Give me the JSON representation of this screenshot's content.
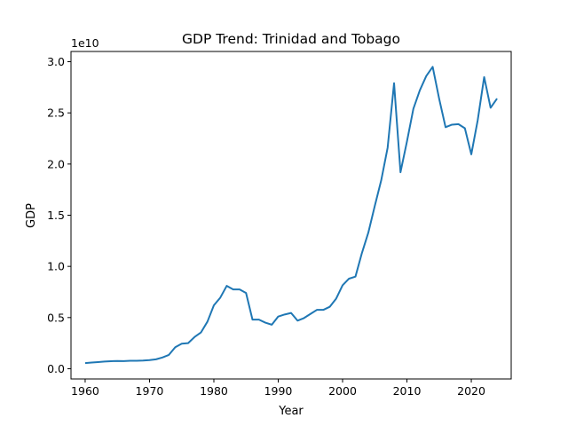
{
  "chart_data": {
    "type": "line",
    "title": "GDP Trend: Trinidad and Tobago",
    "xlabel": "Year",
    "ylabel": "GDP",
    "offset_label": "1e10",
    "xlim": [
      1957.8,
      2026.2
    ],
    "ylim": [
      -1000000000.0,
      31000000000.0
    ],
    "x_ticks": [
      1960,
      1970,
      1980,
      1990,
      2000,
      2010,
      2020
    ],
    "y_ticks": [
      0,
      5000000000.0,
      10000000000.0,
      15000000000.0,
      20000000000.0,
      25000000000.0,
      30000000000.0
    ],
    "y_tick_labels": [
      "0.0",
      "0.5",
      "1.0",
      "1.5",
      "2.0",
      "2.5",
      "3.0"
    ],
    "grid": false,
    "color": "#1f77b4",
    "series": [
      {
        "x": [
          1960,
          1961,
          1962,
          1963,
          1964,
          1965,
          1966,
          1967,
          1968,
          1969,
          1970,
          1971,
          1972,
          1973,
          1974,
          1975,
          1976,
          1977,
          1978,
          1979,
          1980,
          1981,
          1982,
          1983,
          1984,
          1985,
          1986,
          1987,
          1988,
          1989,
          1990,
          1991,
          1992,
          1993,
          1994,
          1995,
          1996,
          1997,
          1998,
          1999,
          2000,
          2001,
          2002,
          2003,
          2004,
          2005,
          2006,
          2007,
          2008,
          2009,
          2010,
          2011,
          2012,
          2013,
          2014,
          2015,
          2016,
          2017,
          2018,
          2019,
          2020,
          2021,
          2022,
          2023,
          2024
        ],
        "values": [
          550000000.0,
          600000000.0,
          650000000.0,
          700000000.0,
          740000000.0,
          760000000.0,
          750000000.0,
          780000000.0,
          780000000.0,
          800000000.0,
          840000000.0,
          920000000.0,
          1100000000.0,
          1350000000.0,
          2100000000.0,
          2450000000.0,
          2500000000.0,
          3100000000.0,
          3550000000.0,
          4600000000.0,
          6200000000.0,
          6950000000.0,
          8100000000.0,
          7750000000.0,
          7750000000.0,
          7400000000.0,
          4800000000.0,
          4800000000.0,
          4500000000.0,
          4300000000.0,
          5100000000.0,
          5300000000.0,
          5450000000.0,
          4700000000.0,
          4950000000.0,
          5350000000.0,
          5750000000.0,
          5750000000.0,
          6050000000.0,
          6850000000.0,
          8150000000.0,
          8800000000.0,
          9000000000.0,
          11300000000.0,
          13300000000.0,
          15900000000.0,
          18400000000.0,
          21600000000.0,
          27900000000.0,
          19200000000.0,
          22200000000.0,
          25400000000.0,
          27200000000.0,
          28600000000.0,
          29500000000.0,
          26400000000.0,
          23600000000.0,
          23850000000.0,
          23900000000.0,
          23500000000.0,
          20950000000.0,
          24300000000.0,
          28500000000.0,
          25500000000.0,
          26400000000.0
        ]
      }
    ]
  }
}
